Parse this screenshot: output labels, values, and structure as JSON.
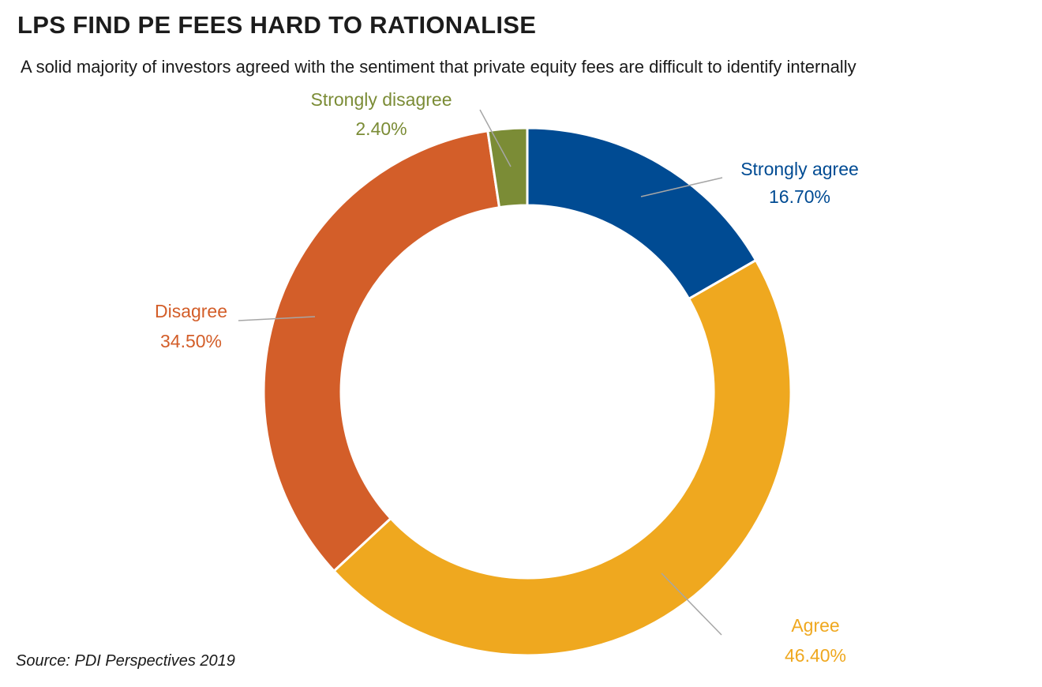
{
  "chart_data": {
    "type": "pie",
    "title": "LPS FIND PE FEES HARD TO RATIONALISE",
    "subtitle": "A solid majority of investors agreed with the sentiment that private equity fees are difficult to identify internally",
    "source": "Source: PDI Perspectives 2019",
    "donut": true,
    "slices": [
      {
        "label": "Strongly agree",
        "value": 16.7,
        "value_label": "16.70%",
        "color": "#004b93"
      },
      {
        "label": "Agree",
        "value": 46.4,
        "value_label": "46.40%",
        "color": "#efa81f"
      },
      {
        "label": "Disagree",
        "value": 34.5,
        "value_label": "34.50%",
        "color": "#d35e29"
      },
      {
        "label": "Strongly disagree",
        "value": 2.4,
        "value_label": "2.40%",
        "color": "#7b8c36"
      }
    ]
  }
}
